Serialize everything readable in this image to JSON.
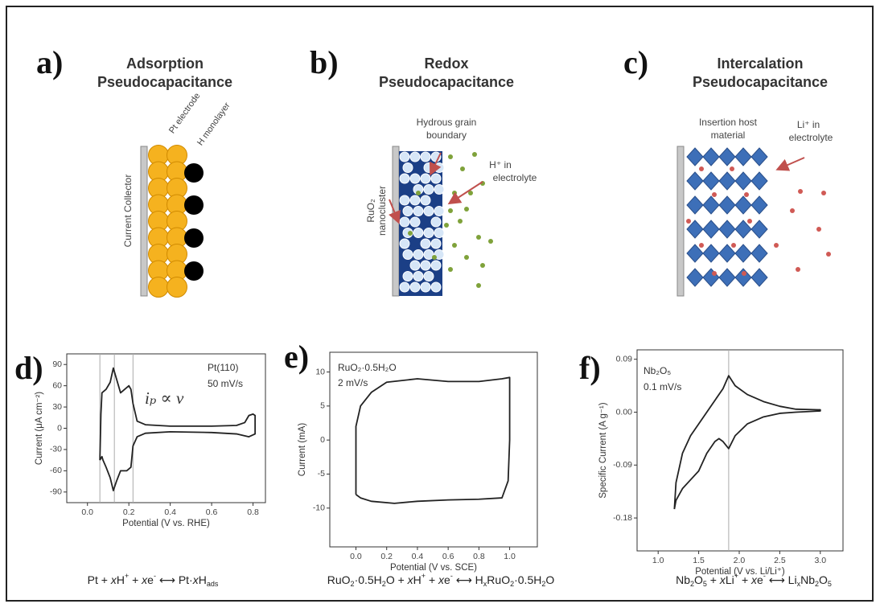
{
  "diagrams": [
    {
      "letter": "a)",
      "title": [
        "Adsorption",
        "Pseudocapacitance"
      ],
      "labels": [
        "Current Collector",
        "Pt electrode",
        "H monolayer"
      ]
    },
    {
      "letter": "b)",
      "title": [
        "Redox",
        "Pseudocapacitance"
      ],
      "labels": [
        [
          "Hydrous grain",
          "boundary"
        ],
        [
          "RuO₂",
          "nanocluster"
        ],
        [
          "H⁺ in",
          "electrolyte"
        ]
      ]
    },
    {
      "letter": "c)",
      "title": [
        "Intercalation",
        "Pseudocapacitance"
      ],
      "labels": [
        [
          "Insertion host",
          "material"
        ],
        [
          "Li⁺ in",
          "electrolyte"
        ]
      ]
    }
  ],
  "chart_data": [
    {
      "type": "line",
      "letter": "d)",
      "color": "#222222",
      "xlabel": "Potential (V vs. RHE)",
      "ylabel": "Current (μA cm⁻²)",
      "annotations": [
        "Pt(110)",
        "50 mV/s",
        "iₚ ∝ ν"
      ],
      "xlim": [
        -0.1,
        0.86
      ],
      "ylim": [
        -105,
        105
      ],
      "xticks": [
        {
          "value": 0,
          "label": "0.0"
        },
        0.2,
        0.4,
        0.6,
        0.8
      ],
      "yticks": [
        90,
        60,
        30,
        0,
        -30,
        -60,
        -90
      ],
      "vlines": [
        0.06,
        0.13,
        0.22
      ],
      "x": [
        0.06,
        0.065,
        0.07,
        0.09,
        0.11,
        0.125,
        0.14,
        0.16,
        0.18,
        0.2,
        0.21,
        0.22,
        0.24,
        0.28,
        0.4,
        0.6,
        0.72,
        0.76,
        0.78,
        0.8,
        0.81,
        0.81,
        0.78,
        0.72,
        0.6,
        0.4,
        0.28,
        0.24,
        0.22,
        0.21,
        0.19,
        0.16,
        0.14,
        0.125,
        0.11,
        0.09,
        0.075,
        0.07,
        0.06
      ],
      "values": [
        -45,
        20,
        50,
        55,
        65,
        85,
        70,
        50,
        55,
        60,
        55,
        35,
        10,
        5,
        3,
        3,
        4,
        8,
        18,
        20,
        18,
        -8,
        -12,
        -8,
        -6,
        -5,
        -7,
        -12,
        -25,
        -55,
        -60,
        -60,
        -75,
        -88,
        -70,
        -55,
        -45,
        -40,
        -45
      ]
    },
    {
      "type": "line",
      "letter": "e)",
      "color": "#222222",
      "xlabel": "Potential (V vs. SCE)",
      "ylabel": "Current (mA)",
      "annotations": [
        "RuO₂·0.5H₂O",
        "2 mV/s"
      ],
      "xlim": [
        -0.17,
        1.18
      ],
      "ylim": [
        -15.7,
        12.9
      ],
      "xticks": [
        {
          "value": 0,
          "label": "0.0"
        },
        0.2,
        0.4,
        0.6,
        0.8,
        {
          "value": 1,
          "label": "1.0"
        }
      ],
      "yticks": [
        10,
        5,
        0,
        -5,
        -10
      ],
      "x": [
        0,
        0,
        0.03,
        0.1,
        0.2,
        0.4,
        0.6,
        0.8,
        0.95,
        1,
        1,
        0.99,
        0.95,
        0.8,
        0.6,
        0.4,
        0.25,
        0.1,
        0.03,
        0
      ],
      "values": [
        -8,
        2,
        5,
        7,
        8.5,
        9,
        8.6,
        8.6,
        9,
        9.2,
        0,
        -6,
        -8.5,
        -8.7,
        -8.8,
        -9,
        -9.3,
        -9,
        -8.5,
        -8
      ]
    },
    {
      "type": "line",
      "letter": "f)",
      "color": "#222222",
      "xlabel": "Potential (V vs. Li/Li⁺)",
      "ylabel": "Specific Current (A g⁻¹)",
      "annotations": [
        "Nb₂O₅",
        "0.1 mV/s"
      ],
      "xlim": [
        0.74,
        3.28
      ],
      "ylim": [
        -0.236,
        0.106
      ],
      "xticks": [
        {
          "value": 1,
          "label": "1.0"
        },
        1.5,
        {
          "value": 2,
          "label": "2.0"
        },
        2.5,
        {
          "value": 3,
          "label": "3.0"
        }
      ],
      "yticks": [
        0.09,
        {
          "value": 0,
          "label": "0.00"
        },
        -0.09,
        -0.18
      ],
      "vlines": [
        1.87
      ],
      "x": [
        1.2,
        1.22,
        1.3,
        1.4,
        1.5,
        1.6,
        1.7,
        1.8,
        1.87,
        1.95,
        2.1,
        2.3,
        2.5,
        2.7,
        3.0,
        3.0,
        2.7,
        2.5,
        2.3,
        2.1,
        1.95,
        1.87,
        1.8,
        1.75,
        1.7,
        1.6,
        1.5,
        1.4,
        1.3,
        1.22,
        1.2
      ],
      "values": [
        -0.165,
        -0.12,
        -0.07,
        -0.04,
        -0.02,
        0.0,
        0.02,
        0.04,
        0.062,
        0.045,
        0.03,
        0.018,
        0.01,
        0.005,
        0.004,
        0.002,
        0.0,
        -0.002,
        -0.008,
        -0.02,
        -0.04,
        -0.062,
        -0.05,
        -0.045,
        -0.05,
        -0.07,
        -0.1,
        -0.115,
        -0.13,
        -0.15,
        -0.165
      ]
    }
  ],
  "equations": [
    [
      {
        "text": "Pt + "
      },
      {
        "text": "x",
        "style": "italic"
      },
      {
        "text": "H"
      },
      {
        "text": "+",
        "style": "sup"
      },
      {
        "text": " + "
      },
      {
        "text": "x",
        "style": "italic"
      },
      {
        "text": "e"
      },
      {
        "text": "-",
        "style": "sup"
      },
      {
        "text": " ⟷ Pt·"
      },
      {
        "text": "x",
        "style": "italic"
      },
      {
        "text": "H"
      },
      {
        "text": "ads",
        "style": "sub"
      }
    ],
    [
      {
        "text": "RuO"
      },
      {
        "text": "2",
        "style": "sub"
      },
      {
        "text": "·0.5H"
      },
      {
        "text": "2",
        "style": "sub"
      },
      {
        "text": "O + "
      },
      {
        "text": "x",
        "style": "italic"
      },
      {
        "text": "H"
      },
      {
        "text": "+",
        "style": "sup"
      },
      {
        "text": " + "
      },
      {
        "text": "x",
        "style": "italic"
      },
      {
        "text": "e"
      },
      {
        "text": "-",
        "style": "sup"
      },
      {
        "text": " ⟷ H"
      },
      {
        "text": "x",
        "style": "sub"
      },
      {
        "text": "RuO"
      },
      {
        "text": "2",
        "style": "sub"
      },
      {
        "text": "·0.5H"
      },
      {
        "text": "2",
        "style": "sub"
      },
      {
        "text": "O"
      }
    ],
    [
      {
        "text": "Nb"
      },
      {
        "text": "2",
        "style": "sub"
      },
      {
        "text": "O"
      },
      {
        "text": "5",
        "style": "sub"
      },
      {
        "text": " + "
      },
      {
        "text": "x",
        "style": "italic"
      },
      {
        "text": "Li"
      },
      {
        "text": "+",
        "style": "sup"
      },
      {
        "text": " + "
      },
      {
        "text": "x",
        "style": "italic"
      },
      {
        "text": "e"
      },
      {
        "text": "-",
        "style": "sup"
      },
      {
        "text": " ⟷ Li"
      },
      {
        "text": "x",
        "style": "sub"
      },
      {
        "text": "Nb"
      },
      {
        "text": "2",
        "style": "sub"
      },
      {
        "text": "O"
      },
      {
        "text": "5",
        "style": "sub"
      }
    ]
  ]
}
